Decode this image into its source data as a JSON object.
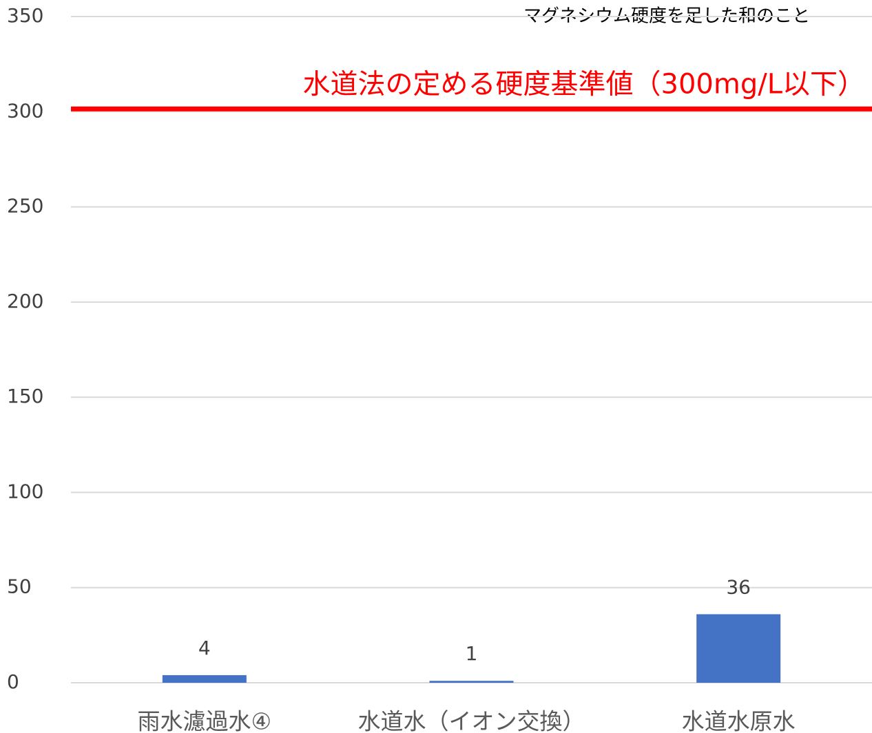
{
  "chart_data": {
    "type": "bar",
    "categories": [
      "雨水濾過水④",
      "水道水（イオン交換）",
      "水道水原水"
    ],
    "values": [
      4,
      1,
      36
    ],
    "color": "#4472c4",
    "ylim": [
      0,
      350
    ],
    "yticks": [
      0,
      50,
      100,
      150,
      200,
      250,
      300,
      350
    ],
    "grid": true,
    "reference_line": {
      "value": 300,
      "label": "水道法の定める硬度基準値（300mg/L以下）",
      "color": "#ff0000"
    },
    "annotation": "マグネシウム硬度を足した和のこと"
  }
}
